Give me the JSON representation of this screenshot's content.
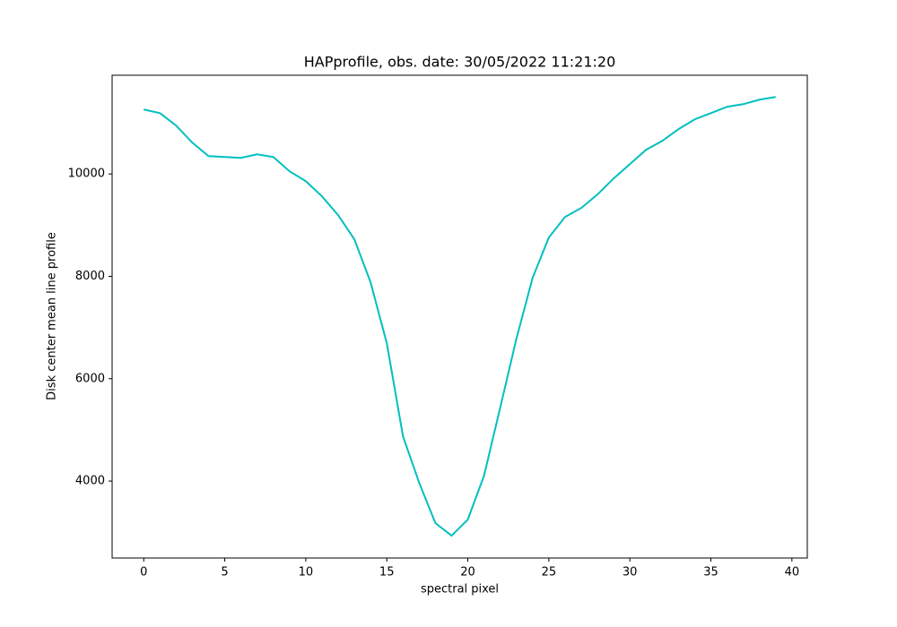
{
  "chart_data": {
    "type": "line",
    "title": "HAPprofile, obs. date: 30/05/2022 11:21:20",
    "x_label": "spectral pixel",
    "y_label": "Disk center mean line profile",
    "x": [
      0,
      1,
      2,
      3,
      4,
      5,
      6,
      7,
      8,
      9,
      10,
      11,
      12,
      13,
      14,
      15,
      16,
      17,
      18,
      19,
      20,
      21,
      22,
      23,
      24,
      25,
      26,
      27,
      28,
      29,
      30,
      31,
      32,
      33,
      34,
      35,
      36,
      37,
      38,
      39
    ],
    "series": [
      {
        "name": "HAPprofile",
        "color": "#00bfbf",
        "values": [
          11259,
          11189,
          10945,
          10612,
          10350,
          10332,
          10315,
          10385,
          10332,
          10052,
          9860,
          9563,
          9195,
          8723,
          7883,
          6694,
          4875,
          3965,
          3178,
          2933,
          3248,
          4105,
          5435,
          6782,
          7971,
          8758,
          9160,
          9335,
          9598,
          9913,
          10192,
          10472,
          10647,
          10875,
          11067,
          11189,
          11312,
          11364,
          11452,
          11504
        ]
      }
    ],
    "xlim": [
      -1.95,
      40.95
    ],
    "xticks": [
      0,
      5,
      10,
      15,
      20,
      25,
      30,
      35,
      40
    ],
    "ylim": [
      2496,
      11929
    ],
    "yticks": [
      4000,
      6000,
      8000,
      10000
    ],
    "grid": false
  }
}
